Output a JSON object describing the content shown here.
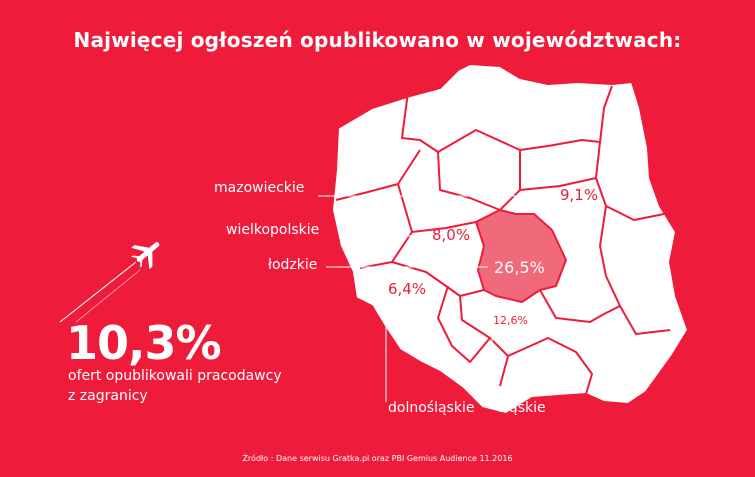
{
  "title": "Najwięcej ogłoszeń opublikowano w województwach:",
  "regions": [
    {
      "name": "mazowieckie",
      "value": "9,1%"
    },
    {
      "name": "wielkopolskie",
      "value": "8,0%"
    },
    {
      "name": "łodzkie",
      "value": "26,5%"
    },
    {
      "name": "dolnośląskie",
      "value": "6,4%"
    },
    {
      "name": "śląskie",
      "value": "12,6%"
    }
  ],
  "foreign": {
    "value": "10,3%",
    "line1": "ofert opublikowali pracodawcy",
    "line2": "z zagranicy"
  },
  "source": "Źródło : Dane serwisu Gratka.pl oraz PBI Gemius Audience 11.2016",
  "colors": {
    "background": "#ee1c3a",
    "map_fill": "#ffffff",
    "highlight_fill": "#f06a7b"
  },
  "icons": {
    "plane": "airplane-icon"
  }
}
